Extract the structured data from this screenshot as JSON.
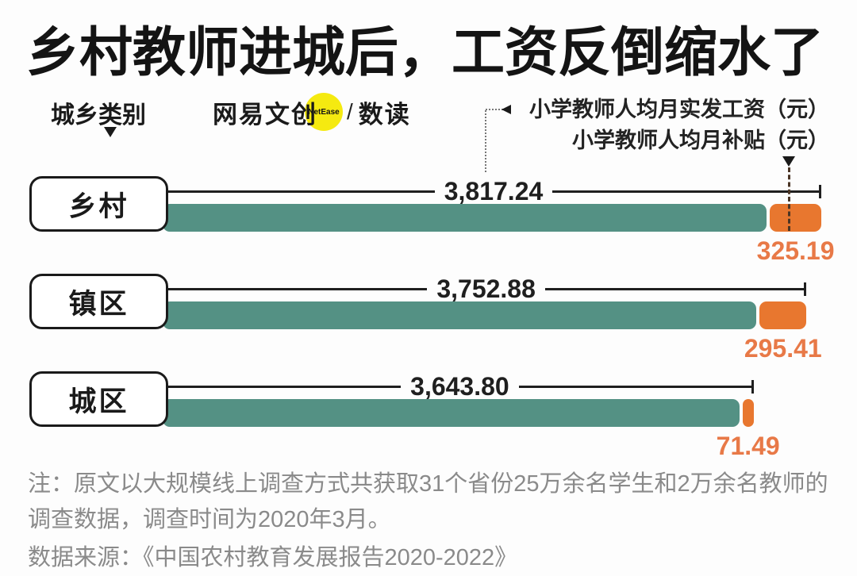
{
  "title": "乡村教师进城后，工资反倒缩水了",
  "category_axis": {
    "label": "城乡类别"
  },
  "logo": {
    "brand": "网易文创",
    "badge": "NetEase",
    "separator": "/",
    "sub_brand": "数读"
  },
  "legend": {
    "wage_label": "小学教师人均月实发工资（元）",
    "subsidy_label": "小学教师人均月补贴（元）"
  },
  "chart_data": {
    "type": "bar",
    "orientation": "horizontal",
    "title": "乡村教师进城后，工资反倒缩水了",
    "categories": [
      "乡村",
      "镇区",
      "城区"
    ],
    "series": [
      {
        "name": "小学教师人均月实发工资（元）",
        "color": "#549184",
        "values": [
          3817.24,
          3752.88,
          3643.8
        ],
        "value_labels": [
          "3,817.24",
          "3,752.88",
          "3,643.80"
        ]
      },
      {
        "name": "小学教师人均月补贴（元）",
        "color": "#e8772f",
        "values": [
          325.19,
          295.41,
          71.49
        ],
        "value_labels": [
          "325.19",
          "295.41",
          "71.49"
        ]
      }
    ],
    "xlim": [
      0,
      4142.43
    ],
    "grid": false,
    "legend_position": "top-right",
    "value_label_style": {
      "wage": "black, centered on connector line",
      "subsidy": "orange, below subsidy bar"
    }
  },
  "notes": {
    "line1": "注：原文以大规模线上调查方式共获取31个省份25万余名学生和2万余名教师的",
    "line2": "调查数据，调查时间为2020年3月。",
    "source": "数据来源：《中国农村教育发展报告2020-2022》"
  },
  "colors": {
    "wage_bar": "#549184",
    "subsidy_bar": "#e8772f",
    "subsidy_text": "#e87947",
    "logo_circle": "#f5ea10",
    "ink": "#1a1a1a",
    "note_gray": "#8a8a8a",
    "background": "#fdfdfd"
  }
}
